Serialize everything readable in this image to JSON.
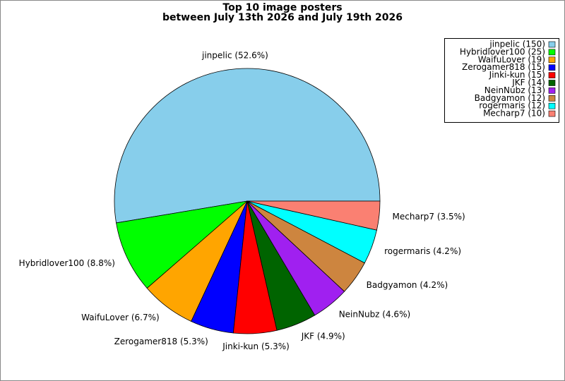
{
  "chart_data": {
    "type": "pie",
    "title": "Top 10 image posters",
    "subtitle": "between July 13th 2026 and July 19th 2026",
    "categories": [
      "jinpelic",
      "Hybridlover100",
      "WaifuLover",
      "Zerogamer818",
      "Jinki-kun",
      "JKF",
      "NeinNubz",
      "Badgyamon",
      "rogermaris",
      "Mecharp7"
    ],
    "values": [
      150,
      25,
      19,
      15,
      15,
      14,
      13,
      12,
      12,
      10
    ],
    "colors": [
      "#87ceeb",
      "#00ff00",
      "#ffa500",
      "#0000ff",
      "#ff0000",
      "#006400",
      "#a020f0",
      "#cd853f",
      "#00ffff",
      "#fa8072"
    ],
    "slice_labels": [
      "jinpelic (52.6%)",
      "Hybridlover100 (8.8%)",
      "WaifuLover (6.7%)",
      "Zerogamer818 (5.3%)",
      "Jinki-kun (5.3%)",
      "JKF (4.9%)",
      "NeinNubz (4.6%)",
      "Badgyamon (4.2%)",
      "rogermaris (4.2%)",
      "Mecharp7 (3.5%)"
    ],
    "legend_labels": [
      "jinpelic (150)",
      "Hybridlover100 (25)",
      "WaifuLover (19)",
      "Zerogamer818 (15)",
      "Jinki-kun (15)",
      "JKF (14)",
      "NeinNubz (13)",
      "Badgyamon (12)",
      "rogermaris (12)",
      "Mecharp7 (10)"
    ],
    "legend": "upper right"
  }
}
